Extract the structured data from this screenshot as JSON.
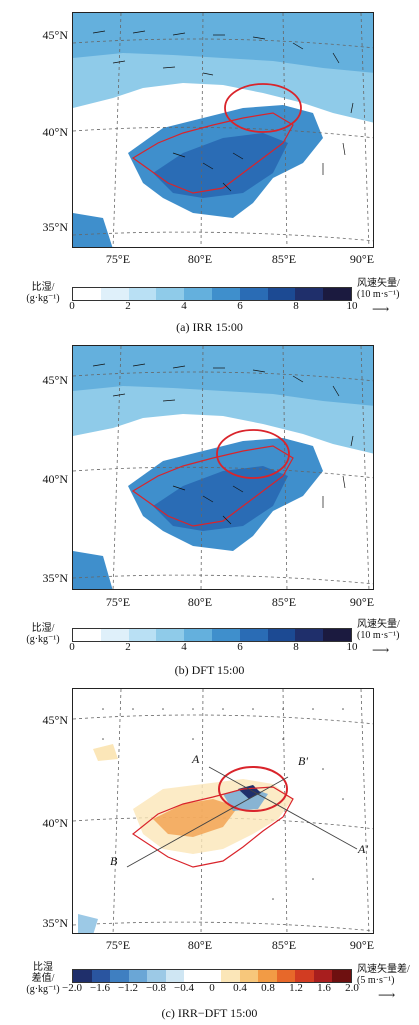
{
  "panels": [
    {
      "caption": "(a) IRR 15:00",
      "lat_labels": [
        "45°N",
        "40°N",
        "35°N"
      ],
      "lon_labels": [
        "75°E",
        "80°E",
        "85°E",
        "90°E"
      ],
      "cbar_left_unit": [
        "比湿/",
        "(g·kg⁻¹)"
      ],
      "cbar_right_unit": [
        "风速矢量/",
        "(10 m·s⁻¹)"
      ],
      "cbar_ticks": [
        "0",
        "2",
        "4",
        "6",
        "8",
        "10"
      ],
      "cbar_colors": [
        "#ffffff",
        "#dff0fa",
        "#b9e0f4",
        "#8fcbe9",
        "#64b0dd",
        "#3f8fcc",
        "#2a6cb5",
        "#1c4a93",
        "#1f2f6b",
        "#1b1a3f"
      ]
    },
    {
      "caption": "(b) DFT 15:00",
      "lat_labels": [
        "45°N",
        "40°N",
        "35°N"
      ],
      "lon_labels": [
        "75°E",
        "80°E",
        "85°E",
        "90°E"
      ],
      "cbar_left_unit": [
        "比湿/",
        "(g·kg⁻¹)"
      ],
      "cbar_right_unit": [
        "风速矢量/",
        "(10 m·s⁻¹)"
      ],
      "cbar_ticks": [
        "0",
        "2",
        "4",
        "6",
        "8",
        "10"
      ],
      "cbar_colors": [
        "#ffffff",
        "#dff0fa",
        "#b9e0f4",
        "#8fcbe9",
        "#64b0dd",
        "#3f8fcc",
        "#2a6cb5",
        "#1c4a93",
        "#1f2f6b",
        "#1b1a3f"
      ]
    },
    {
      "caption": "(c) IRR−DFT 15:00",
      "lat_labels": [
        "45°N",
        "40°N",
        "35°N"
      ],
      "lon_labels": [
        "75°E",
        "80°E",
        "85°E",
        "90°E"
      ],
      "cbar_left_unit": [
        "比湿",
        "差值/",
        "(g·kg⁻¹)"
      ],
      "cbar_right_unit": [
        "风速矢量差/",
        "(5 m·s⁻¹)"
      ],
      "cbar_ticks": [
        "−2.0",
        "−1.6",
        "−1.2",
        "−0.8",
        "−0.4",
        "0",
        "0.4",
        "0.8",
        "1.2",
        "1.6",
        "2.0"
      ],
      "cbar_colors": [
        "#1f2f6b",
        "#2a55a0",
        "#3f7fc1",
        "#6aa6d6",
        "#9cc9e6",
        "#cfe6f3",
        "#ffffff",
        "#ffffff",
        "#fbe6b8",
        "#f7c77b",
        "#f29b45",
        "#e7682a",
        "#d23c22",
        "#a81e1e",
        "#6e1010"
      ],
      "section_labels": [
        "A",
        "B'",
        "B",
        "A'"
      ]
    }
  ]
}
